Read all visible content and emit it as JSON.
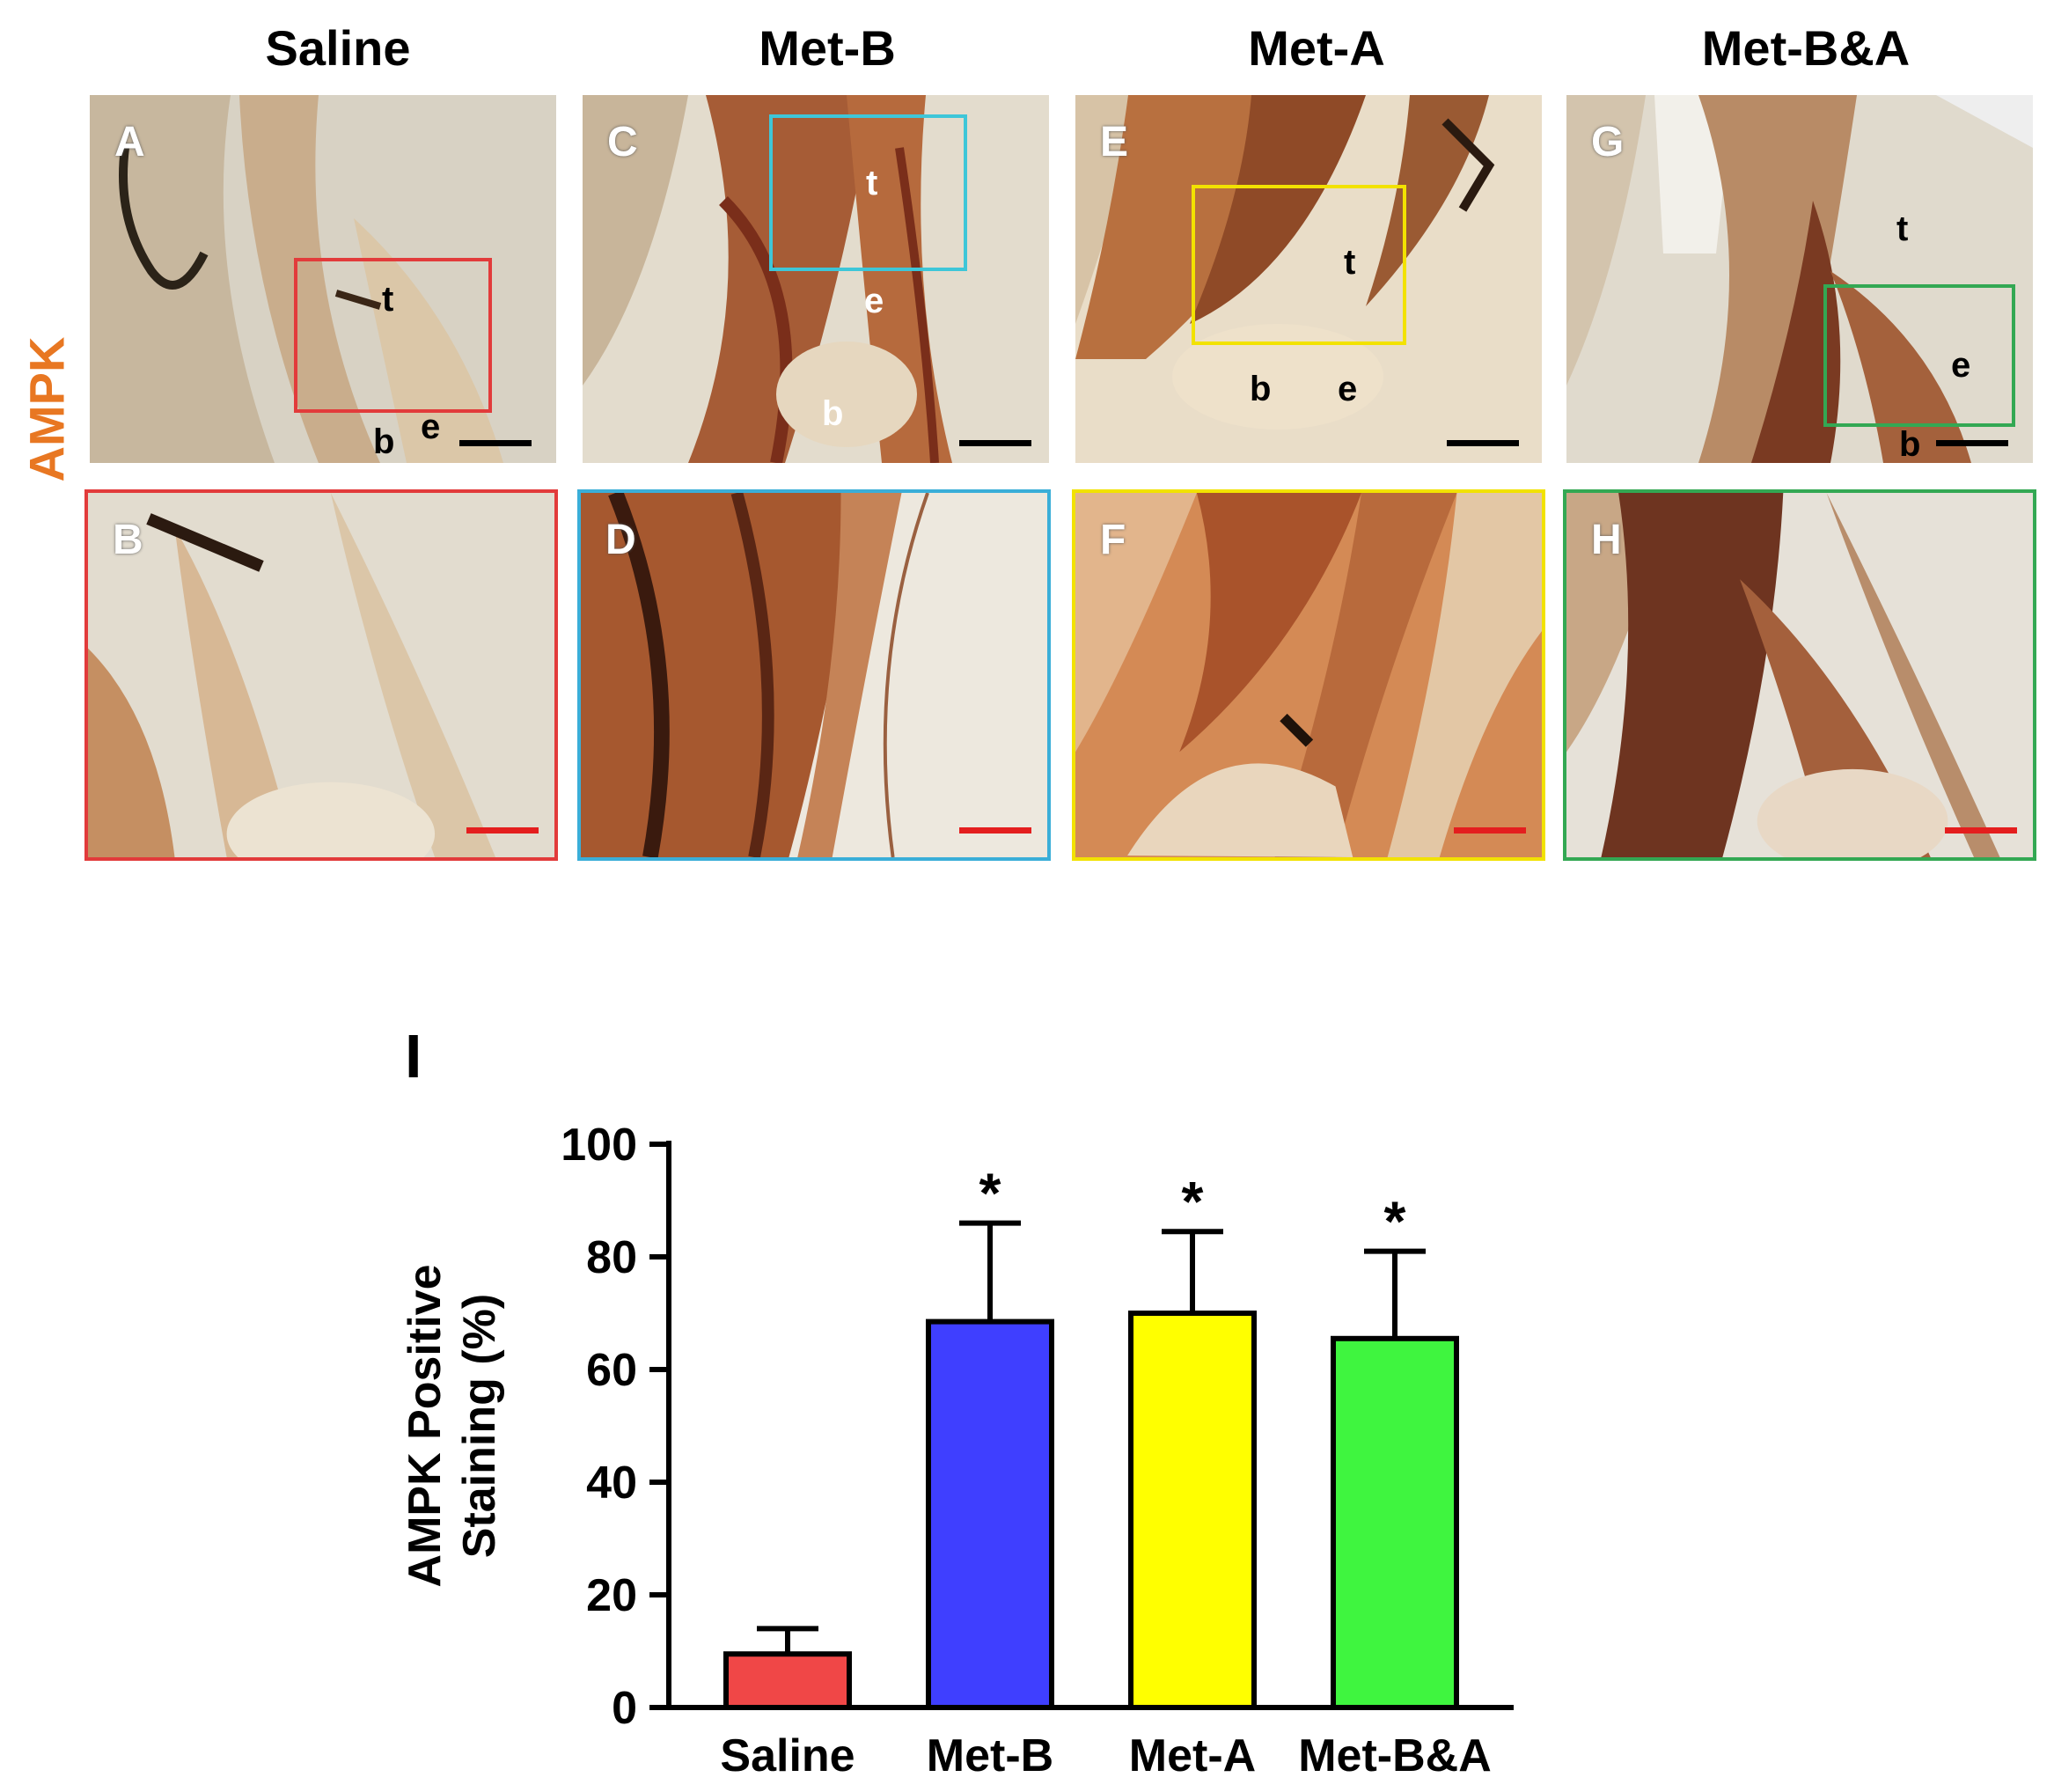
{
  "figure": {
    "row_label": "AMPK",
    "columns": [
      "Saline",
      "Met-B",
      "Met-A",
      "Met-B&A"
    ],
    "panels_top": [
      {
        "label": "A",
        "annotations": [
          "t",
          "b",
          "e"
        ]
      },
      {
        "label": "C",
        "annotations": [
          "t",
          "e",
          "b"
        ]
      },
      {
        "label": "E",
        "annotations": [
          "t",
          "b",
          "e"
        ]
      },
      {
        "label": "G",
        "annotations": [
          "t",
          "e",
          "b"
        ]
      }
    ],
    "panels_bottom": [
      {
        "label": "B"
      },
      {
        "label": "D"
      },
      {
        "label": "F"
      },
      {
        "label": "H"
      }
    ],
    "colors": {
      "row_label": "#e87722",
      "frame_saline": "#e23b3b",
      "frame_met_b": "#3aaed8",
      "frame_met_a": "#f2e200",
      "frame_met_ba": "#33a853",
      "scale_bar_top": "#000000",
      "scale_bar_bottom": "#e41e1e"
    }
  },
  "chart_label": "I",
  "chart_data": {
    "type": "bar",
    "categories": [
      "Saline",
      "Met-B",
      "Met-A",
      "Met-B&A"
    ],
    "values": [
      9.5,
      68.5,
      70,
      65.5
    ],
    "errors": [
      4.5,
      17.5,
      14.5,
      15.5
    ],
    "significance": [
      "",
      "*",
      "*",
      "*"
    ],
    "colors": [
      "#f04747",
      "#3f3fff",
      "#ffff00",
      "#3ff53f"
    ],
    "ylabel": [
      "AMPK Positive",
      "Staining (%)"
    ],
    "ylim": [
      0,
      100
    ],
    "yticks": [
      "0",
      "20",
      "40",
      "60",
      "80",
      "100"
    ]
  }
}
